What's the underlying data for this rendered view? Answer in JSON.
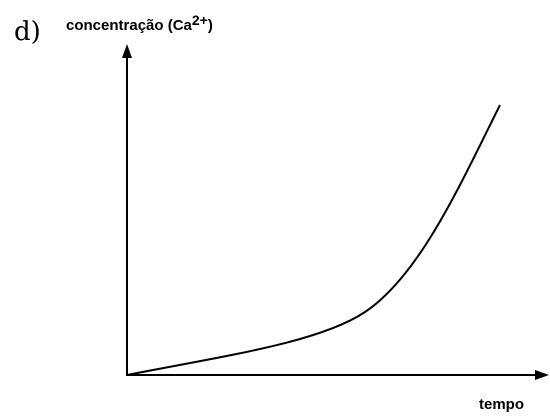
{
  "label": "d)",
  "y_axis": {
    "label": "concentração (Ca",
    "superscript": "2+",
    "suffix": ")"
  },
  "x_axis": {
    "label": "tempo"
  }
}
